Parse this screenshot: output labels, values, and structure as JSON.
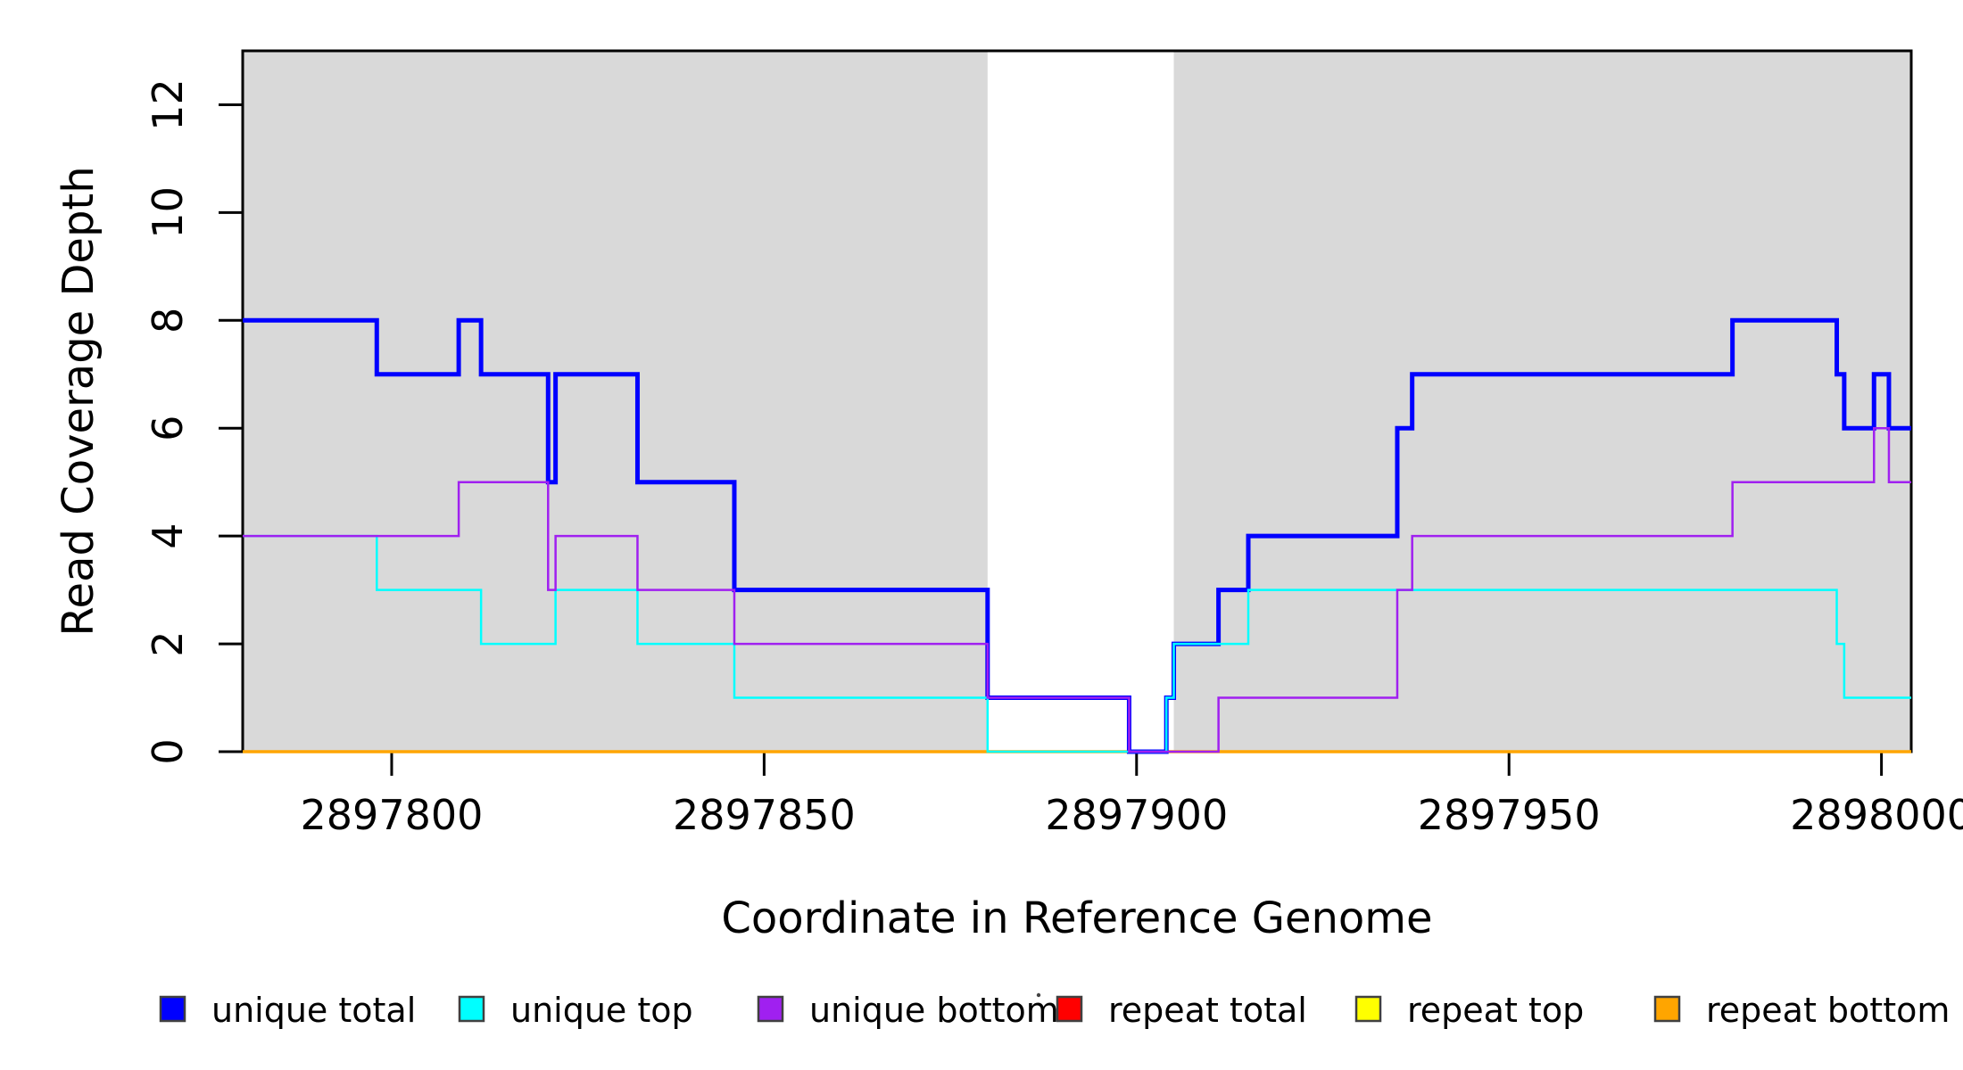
{
  "figure": {
    "background": "#ffffff",
    "frame_color": "#000000"
  },
  "chart_data": {
    "type": "line",
    "subtype": "step-after",
    "title": "",
    "xlabel": "Coordinate in Reference Genome",
    "ylabel": "Read Coverage Depth",
    "xlim": [
      2897780,
      2898004
    ],
    "ylim": [
      0,
      13
    ],
    "x_ticks": [
      2897800,
      2897850,
      2897900,
      2897950,
      2898000
    ],
    "y_ticks": [
      0,
      2,
      4,
      6,
      8,
      10,
      12
    ],
    "grid": false,
    "legend_position": "bottom",
    "background_bands": [
      {
        "name": "shaded-region-left",
        "x0": 2897780,
        "x1": 2897880,
        "color": "#d9d9d9"
      },
      {
        "name": "shaded-region-right",
        "x0": 2897905,
        "x1": 2898004,
        "color": "#d9d9d9"
      }
    ],
    "series": [
      {
        "name": "unique total",
        "color": "#0000ff",
        "line_width": 5,
        "draw_order": 4,
        "points": [
          [
            2897780,
            8
          ],
          [
            2897798,
            7
          ],
          [
            2897809,
            8
          ],
          [
            2897812,
            7
          ],
          [
            2897821,
            5
          ],
          [
            2897822,
            7
          ],
          [
            2897833,
            5
          ],
          [
            2897846,
            3
          ],
          [
            2897880,
            1
          ],
          [
            2897899,
            0
          ],
          [
            2897904,
            1
          ],
          [
            2897905,
            2
          ],
          [
            2897911,
            3
          ],
          [
            2897915,
            4
          ],
          [
            2897935,
            6
          ],
          [
            2897937,
            7
          ],
          [
            2897980,
            8
          ],
          [
            2897994,
            7
          ],
          [
            2897995,
            6
          ],
          [
            2897999,
            7
          ],
          [
            2898001,
            6
          ],
          [
            2898004,
            6
          ]
        ]
      },
      {
        "name": "unique top",
        "color": "#00ffff",
        "line_width": 2.5,
        "draw_order": 5,
        "points": [
          [
            2897780,
            4
          ],
          [
            2897798,
            3
          ],
          [
            2897812,
            2
          ],
          [
            2897822,
            3
          ],
          [
            2897833,
            2
          ],
          [
            2897846,
            1
          ],
          [
            2897880,
            0
          ],
          [
            2897904,
            1
          ],
          [
            2897905,
            2
          ],
          [
            2897915,
            3
          ],
          [
            2897994,
            2
          ],
          [
            2897995,
            1
          ],
          [
            2898004,
            1
          ]
        ]
      },
      {
        "name": "unique bottom",
        "color": "#a020f0",
        "line_width": 2.5,
        "draw_order": 6,
        "points": [
          [
            2897780,
            4
          ],
          [
            2897809,
            5
          ],
          [
            2897821,
            3
          ],
          [
            2897822,
            4
          ],
          [
            2897833,
            3
          ],
          [
            2897846,
            2
          ],
          [
            2897880,
            1
          ],
          [
            2897899,
            0
          ],
          [
            2897911,
            1
          ],
          [
            2897935,
            3
          ],
          [
            2897937,
            4
          ],
          [
            2897980,
            5
          ],
          [
            2897999,
            6
          ],
          [
            2898001,
            5
          ],
          [
            2898004,
            5
          ]
        ]
      },
      {
        "name": "repeat total",
        "color": "#ff0000",
        "line_width": 3,
        "draw_order": 1,
        "points": [
          [
            2897780,
            0
          ],
          [
            2898004,
            0
          ]
        ]
      },
      {
        "name": "repeat top",
        "color": "#ffff00",
        "line_width": 3,
        "draw_order": 2,
        "points": [
          [
            2897780,
            0
          ],
          [
            2898004,
            0
          ]
        ]
      },
      {
        "name": "repeat bottom",
        "color": "#ffa500",
        "line_width": 3.5,
        "draw_order": 3,
        "points": [
          [
            2897780,
            0
          ],
          [
            2898004,
            0
          ]
        ]
      }
    ]
  }
}
